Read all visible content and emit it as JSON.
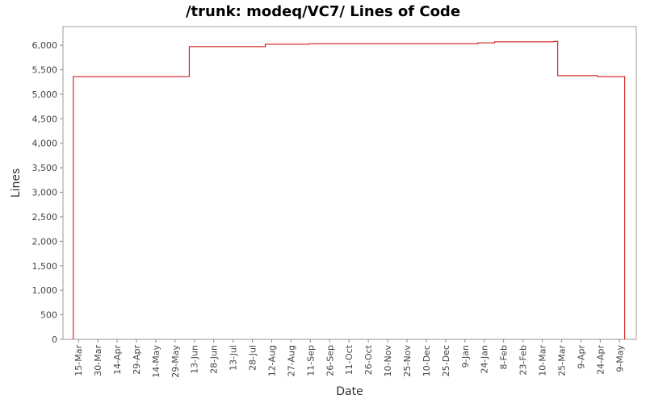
{
  "chart_data": {
    "type": "line",
    "step": true,
    "title": "/trunk: modeq/VC7/ Lines of Code",
    "x_label": "Date",
    "y_label": "Lines",
    "color": "#cc0000",
    "x": [
      -4,
      -4,
      86,
      86,
      145,
      145,
      179,
      179,
      310,
      310,
      323,
      323,
      369,
      369,
      372,
      372,
      403,
      403,
      424,
      424
    ],
    "values": [
      0,
      5360,
      5360,
      5970,
      5970,
      6020,
      6020,
      6030,
      6030,
      6050,
      6050,
      6070,
      6070,
      6080,
      6080,
      5380,
      5380,
      5360,
      5360,
      0
    ],
    "xlim": [
      -12,
      433
    ],
    "xticks": [
      {
        "value": 0,
        "label": "15-Mar"
      },
      {
        "value": 15,
        "label": "30-Mar"
      },
      {
        "value": 30,
        "label": "14-Apr"
      },
      {
        "value": 45,
        "label": "29-Apr"
      },
      {
        "value": 60,
        "label": "14-May"
      },
      {
        "value": 75,
        "label": "29-May"
      },
      {
        "value": 90,
        "label": "13-Jun"
      },
      {
        "value": 105,
        "label": "28-Jun"
      },
      {
        "value": 120,
        "label": "13-Jul"
      },
      {
        "value": 135,
        "label": "28-Jul"
      },
      {
        "value": 150,
        "label": "12-Aug"
      },
      {
        "value": 165,
        "label": "27-Aug"
      },
      {
        "value": 180,
        "label": "11-Sep"
      },
      {
        "value": 195,
        "label": "26-Sep"
      },
      {
        "value": 210,
        "label": "11-Oct"
      },
      {
        "value": 225,
        "label": "26-Oct"
      },
      {
        "value": 240,
        "label": "10-Nov"
      },
      {
        "value": 255,
        "label": "25-Nov"
      },
      {
        "value": 270,
        "label": "10-Dec"
      },
      {
        "value": 285,
        "label": "25-Dec"
      },
      {
        "value": 300,
        "label": "9-Jan"
      },
      {
        "value": 315,
        "label": "24-Jan"
      },
      {
        "value": 330,
        "label": "8-Feb"
      },
      {
        "value": 345,
        "label": "23-Feb"
      },
      {
        "value": 360,
        "label": "10-Mar"
      },
      {
        "value": 375,
        "label": "25-Mar"
      },
      {
        "value": 390,
        "label": "9-Apr"
      },
      {
        "value": 405,
        "label": "24-Apr"
      },
      {
        "value": 420,
        "label": "9-May"
      }
    ],
    "ylim": [
      0,
      6380
    ],
    "yticks": [
      0,
      500,
      {
        "value": 1000,
        "label": "1,000"
      },
      {
        "value": 1500,
        "label": "1,500"
      },
      {
        "value": 2000,
        "label": "2,000"
      },
      {
        "value": 2500,
        "label": "2,500"
      },
      {
        "value": 3000,
        "label": "3,000"
      },
      {
        "value": 3500,
        "label": "3,500"
      },
      {
        "value": 4000,
        "label": "4,000"
      },
      {
        "value": 4500,
        "label": "4,500"
      },
      {
        "value": 5000,
        "label": "5,000"
      },
      {
        "value": 5500,
        "label": "5,500"
      },
      {
        "value": 6000,
        "label": "6,000"
      }
    ]
  }
}
